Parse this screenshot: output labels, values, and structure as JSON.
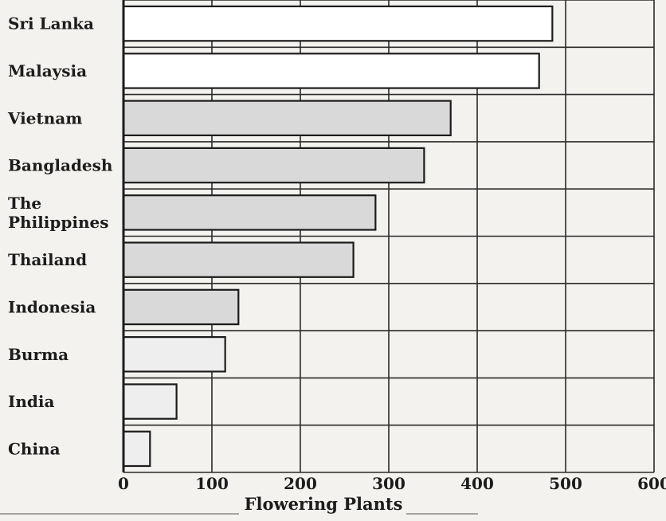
{
  "chart_data": {
    "type": "bar",
    "orientation": "horizontal",
    "categories": [
      "Sri Lanka",
      "Malaysia",
      "Vietnam",
      "Bangladesh",
      "The Philippines",
      "Thailand",
      "Indonesia",
      "Burma",
      "India",
      "China"
    ],
    "category_label_lines": [
      [
        "Sri Lanka"
      ],
      [
        "Malaysia"
      ],
      [
        "Vietnam"
      ],
      [
        "Bangladesh"
      ],
      [
        "The",
        "Philippines"
      ],
      [
        "Thailand"
      ],
      [
        "Indonesia"
      ],
      [
        "Burma"
      ],
      [
        "India"
      ],
      [
        "China"
      ]
    ],
    "values": [
      485,
      470,
      370,
      340,
      285,
      260,
      130,
      115,
      60,
      30
    ],
    "bar_fill": [
      "#ffffff",
      "#ffffff",
      "#d9d9d9",
      "#d9d9d9",
      "#d9d9d9",
      "#d9d9d9",
      "#d9d9d9",
      "#eeeeee",
      "#eeeeee",
      "#eeeeee"
    ],
    "title": "",
    "xlabel": "Flowering Plants",
    "ylabel": "",
    "xlim": [
      0,
      600
    ],
    "xticks": [
      0,
      100,
      200,
      300,
      400,
      500,
      600
    ],
    "xtick_labels": [
      "0",
      "100",
      "200",
      "300",
      "400",
      "500",
      "600"
    ],
    "grid": true,
    "legend": "none"
  }
}
